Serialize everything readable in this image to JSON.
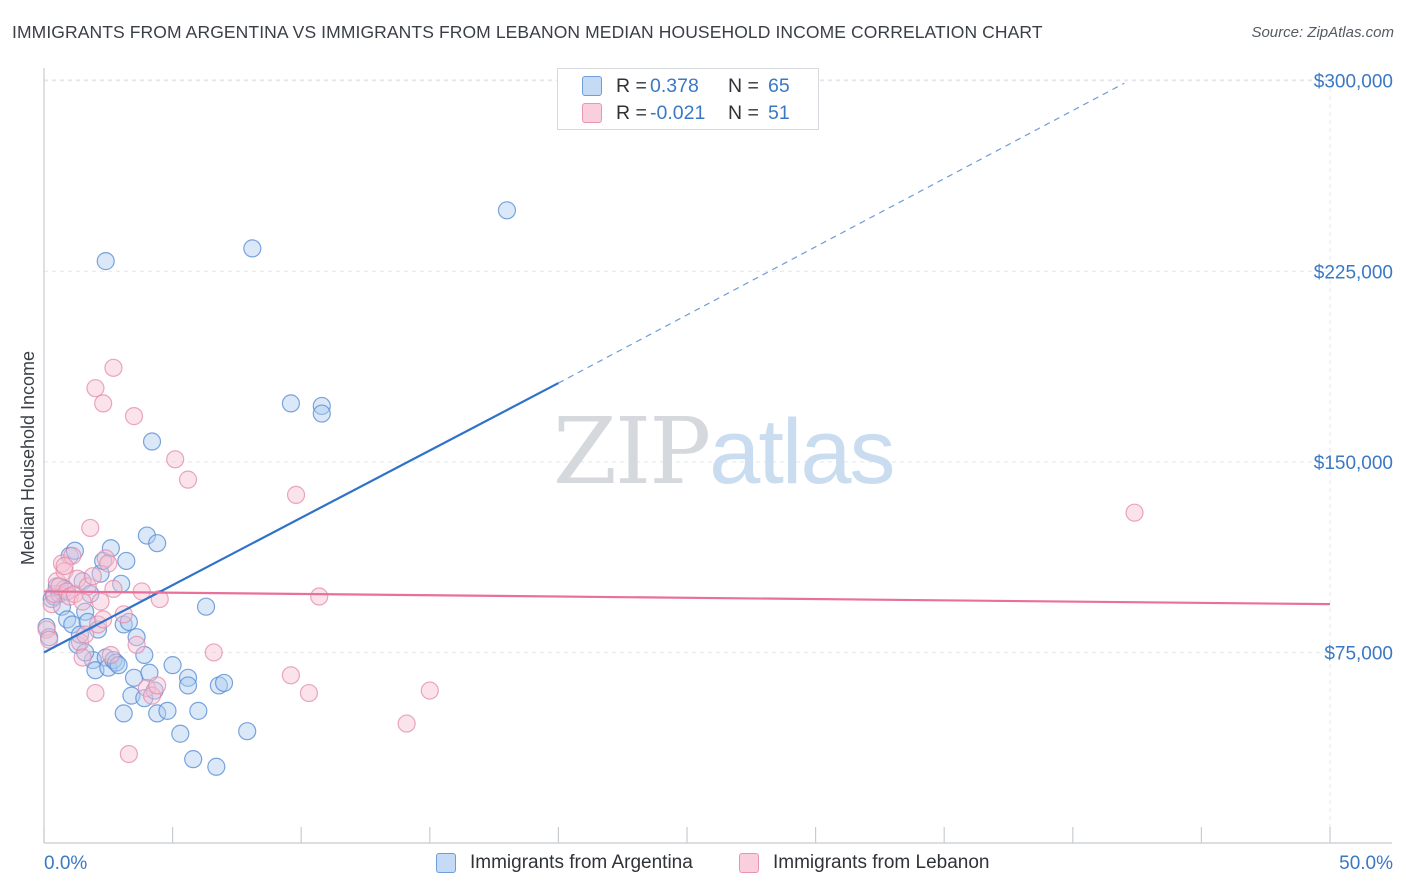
{
  "header": {
    "title": "IMMIGRANTS FROM ARGENTINA VS IMMIGRANTS FROM LEBANON MEDIAN HOUSEHOLD INCOME CORRELATION CHART",
    "source": "Source: ZipAtlas.com"
  },
  "watermark": {
    "zip": "ZIP",
    "atlas": "atlas"
  },
  "legend": {
    "argentina": {
      "r_label": "R =",
      "r_value": "0.378",
      "n_label": "N =",
      "n_value": "65"
    },
    "lebanon": {
      "r_label": "R =",
      "r_value": "-0.021",
      "n_label": "N =",
      "n_value": "51"
    }
  },
  "colors": {
    "argentina_fill": "#aecbf0",
    "argentina_stroke": "#5b8fd6",
    "argentina_line": "#2f72c9",
    "lebanon_fill": "#f7c1d3",
    "lebanon_stroke": "#e389a9",
    "lebanon_line": "#e8709a",
    "grid": "#e4e6e9",
    "tick_text": "#3b78c4"
  },
  "chart_data": {
    "type": "scatter",
    "title": "IMMIGRANTS FROM ARGENTINA VS IMMIGRANTS FROM LEBANON MEDIAN HOUSEHOLD INCOME CORRELATION CHART",
    "xlabel": "",
    "ylabel": "Median Household Income",
    "xlim": [
      0,
      50
    ],
    "ylim": [
      0,
      305000
    ],
    "x_tick_labels": [
      "0.0%",
      "50.0%"
    ],
    "y_ticks": [
      {
        "value": 75000,
        "label": "$75,000"
      },
      {
        "value": 150000,
        "label": "$150,000"
      },
      {
        "value": 225000,
        "label": "$225,000"
      },
      {
        "value": 300000,
        "label": "$300,000"
      }
    ],
    "series": [
      {
        "name": "Immigrants from Argentina",
        "r": 0.378,
        "n": 65,
        "trend": {
          "x_start": 0,
          "y_start": 75000,
          "x_solid_end": 20,
          "y_solid_end": 181000,
          "x_dash_end": 42,
          "y_dash_end": 299000
        },
        "points": [
          [
            0.1,
            85000
          ],
          [
            0.2,
            81000
          ],
          [
            0.3,
            96000
          ],
          [
            0.4,
            97000
          ],
          [
            0.5,
            101000
          ],
          [
            0.6,
            98000
          ],
          [
            0.7,
            93000
          ],
          [
            0.8,
            100000
          ],
          [
            0.9,
            88000
          ],
          [
            1.0,
            113000
          ],
          [
            1.1,
            86000
          ],
          [
            1.2,
            115000
          ],
          [
            1.3,
            78000
          ],
          [
            1.4,
            82000
          ],
          [
            1.5,
            103000
          ],
          [
            1.6,
            91000
          ],
          [
            1.7,
            87000
          ],
          [
            1.8,
            98000
          ],
          [
            1.9,
            72000
          ],
          [
            2.0,
            68000
          ],
          [
            2.1,
            84000
          ],
          [
            2.2,
            106000
          ],
          [
            2.3,
            111000
          ],
          [
            2.4,
            73000
          ],
          [
            2.5,
            69000
          ],
          [
            2.6,
            116000
          ],
          [
            2.7,
            72000
          ],
          [
            2.8,
            71000
          ],
          [
            3.0,
            102000
          ],
          [
            3.1,
            86000
          ],
          [
            3.2,
            111000
          ],
          [
            3.3,
            87000
          ],
          [
            3.6,
            81000
          ],
          [
            3.9,
            74000
          ],
          [
            3.5,
            65000
          ],
          [
            4.1,
            67000
          ],
          [
            3.4,
            58000
          ],
          [
            3.9,
            57000
          ],
          [
            4.3,
            60000
          ],
          [
            4.4,
            51000
          ],
          [
            4.8,
            52000
          ],
          [
            5.0,
            70000
          ],
          [
            5.6,
            65000
          ],
          [
            5.6,
            62000
          ],
          [
            6.0,
            52000
          ],
          [
            5.3,
            43000
          ],
          [
            5.8,
            33000
          ],
          [
            6.7,
            30000
          ],
          [
            6.8,
            62000
          ],
          [
            7.9,
            44000
          ],
          [
            7.0,
            63000
          ],
          [
            4.0,
            121000
          ],
          [
            4.4,
            118000
          ],
          [
            4.2,
            158000
          ],
          [
            2.4,
            229000
          ],
          [
            8.1,
            234000
          ],
          [
            9.6,
            173000
          ],
          [
            10.8,
            172000
          ],
          [
            10.8,
            169000
          ],
          [
            18.0,
            249000
          ],
          [
            6.3,
            93000
          ],
          [
            3.1,
            51000
          ],
          [
            0.9,
            99000
          ],
          [
            1.6,
            75000
          ],
          [
            2.9,
            70000
          ]
        ]
      },
      {
        "name": "Immigrants from Lebanon",
        "r": -0.021,
        "n": 51,
        "trend": {
          "x_start": 0,
          "y_start": 99000,
          "x_end": 50,
          "y_end": 94000
        },
        "points": [
          [
            0.1,
            84000
          ],
          [
            0.2,
            80000
          ],
          [
            0.3,
            94000
          ],
          [
            0.4,
            98000
          ],
          [
            0.5,
            103000
          ],
          [
            0.6,
            101000
          ],
          [
            0.7,
            110000
          ],
          [
            0.8,
            107000
          ],
          [
            0.9,
            99000
          ],
          [
            1.0,
            97000
          ],
          [
            1.1,
            113000
          ],
          [
            1.2,
            98000
          ],
          [
            1.3,
            104000
          ],
          [
            1.4,
            79000
          ],
          [
            1.5,
            73000
          ],
          [
            1.6,
            82000
          ],
          [
            1.7,
            101000
          ],
          [
            1.8,
            124000
          ],
          [
            1.9,
            105000
          ],
          [
            2.0,
            59000
          ],
          [
            2.1,
            86000
          ],
          [
            2.2,
            95000
          ],
          [
            2.3,
            88000
          ],
          [
            2.4,
            112000
          ],
          [
            2.5,
            110000
          ],
          [
            2.6,
            74000
          ],
          [
            2.7,
            100000
          ],
          [
            2.0,
            179000
          ],
          [
            2.3,
            173000
          ],
          [
            2.7,
            187000
          ],
          [
            3.1,
            90000
          ],
          [
            3.3,
            35000
          ],
          [
            3.5,
            168000
          ],
          [
            3.6,
            78000
          ],
          [
            3.8,
            99000
          ],
          [
            4.0,
            61000
          ],
          [
            4.2,
            58000
          ],
          [
            4.4,
            62000
          ],
          [
            4.5,
            96000
          ],
          [
            5.1,
            151000
          ],
          [
            5.6,
            143000
          ],
          [
            6.6,
            75000
          ],
          [
            9.6,
            66000
          ],
          [
            9.8,
            137000
          ],
          [
            10.3,
            59000
          ],
          [
            10.7,
            97000
          ],
          [
            14.1,
            47000
          ],
          [
            15.0,
            60000
          ],
          [
            42.4,
            130000
          ],
          [
            1.5,
            95000
          ],
          [
            0.8,
            109000
          ]
        ]
      }
    ]
  },
  "bottom_legend": {
    "argentina_label": "Immigrants from Argentina",
    "lebanon_label": "Immigrants from Lebanon"
  }
}
